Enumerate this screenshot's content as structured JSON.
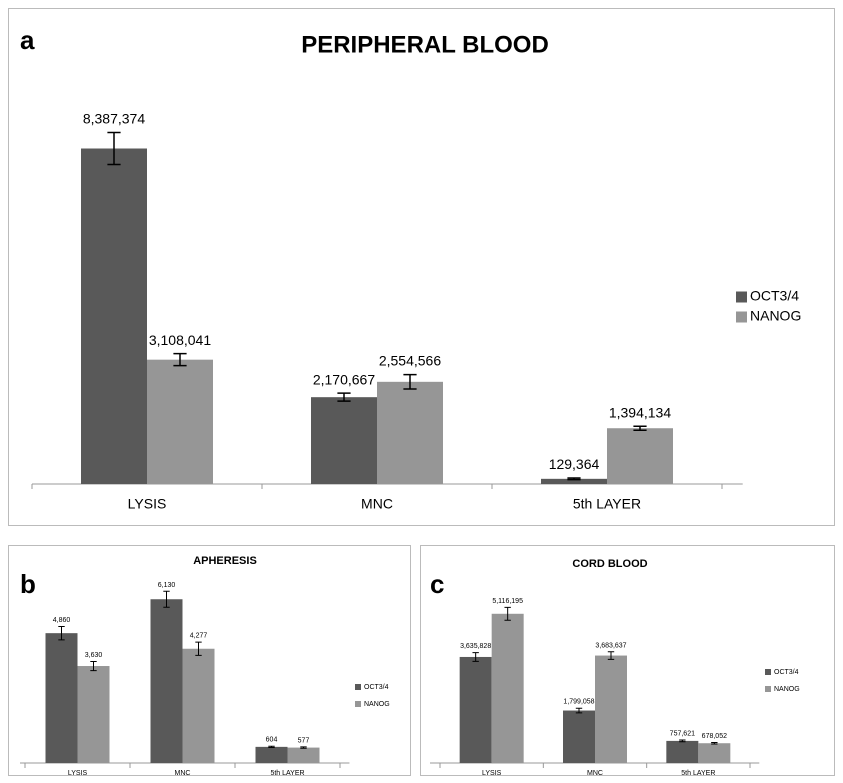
{
  "chart_data": [
    {
      "panel_label": "a",
      "type": "bar",
      "title": "PERIPHERAL BLOOD",
      "categories": [
        "LYSIS",
        "MNC",
        "5th LAYER"
      ],
      "series": [
        {
          "name": "OCT3/4",
          "color": "#595959",
          "values": [
            8387374,
            2170667,
            129364
          ],
          "value_labels": [
            "8,387,374",
            "2,170,667",
            "129,364"
          ],
          "errors": [
            400000,
            100000,
            20000
          ]
        },
        {
          "name": "NANOG",
          "color": "#969696",
          "values": [
            3108041,
            2554566,
            1394134
          ],
          "value_labels": [
            "3,108,041",
            "2,554,566",
            "1,394,134"
          ],
          "errors": [
            150000,
            180000,
            50000
          ]
        }
      ],
      "ylim": [
        0,
        10000000
      ],
      "legend": "right"
    },
    {
      "panel_label": "b",
      "type": "bar",
      "title": "APHERESIS",
      "categories": [
        "LYSIS",
        "MNC",
        "5th LAYER"
      ],
      "series": [
        {
          "name": "OCT3/4",
          "color": "#595959",
          "values": [
            4860,
            6130,
            604
          ],
          "value_labels": [
            "4,860",
            "6,130",
            "604"
          ],
          "errors": [
            250,
            300,
            25
          ]
        },
        {
          "name": "NANOG",
          "color": "#969696",
          "values": [
            3630,
            4277,
            577
          ],
          "value_labels": [
            "3,630",
            "4,277",
            "577"
          ],
          "errors": [
            170,
            250,
            25
          ]
        }
      ],
      "ylim": [
        0,
        7000
      ],
      "legend": "right"
    },
    {
      "panel_label": "c",
      "type": "bar",
      "title": "CORD BLOOD",
      "categories": [
        "LYSIS",
        "MNC",
        "5th LAYER"
      ],
      "series": [
        {
          "name": "OCT3/4",
          "color": "#595959",
          "values": [
            3635828,
            1799058,
            757621
          ],
          "value_labels": [
            "3,635,828",
            "1,799,058",
            "757,621"
          ],
          "errors": [
            150000,
            80000,
            30000
          ]
        },
        {
          "name": "NANOG",
          "color": "#969696",
          "values": [
            5116195,
            3683637,
            678052
          ],
          "value_labels": [
            "5,116,195",
            "3,683,637",
            "678,052"
          ],
          "errors": [
            220000,
            130000,
            25000
          ]
        }
      ],
      "ylim": [
        0,
        6000000
      ],
      "legend": "right"
    }
  ]
}
